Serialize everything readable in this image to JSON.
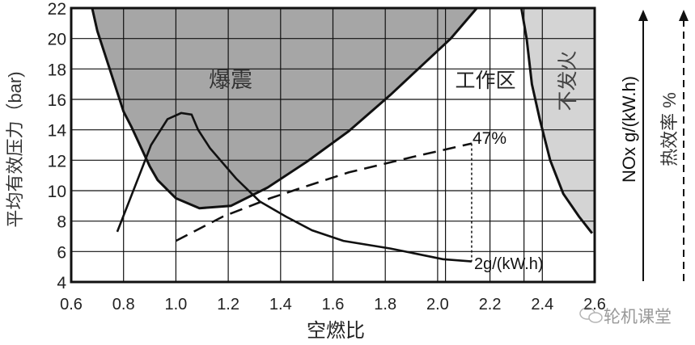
{
  "chart_data": {
    "type": "line",
    "title": "",
    "xlabel": "空燃比",
    "ylabel": "平均有效压力（bar)",
    "xlim": [
      0.6,
      2.6
    ],
    "ylim": [
      4,
      22
    ],
    "xticks": [
      "0.6",
      "0.8",
      "1.0",
      "1.2",
      "1.4",
      "1.6",
      "1.8",
      "2.0",
      "2.2",
      "2.4",
      "2.6"
    ],
    "yticks": [
      "4",
      "6",
      "8",
      "10",
      "12",
      "14",
      "16",
      "18",
      "20",
      "22"
    ],
    "grid": true,
    "regions": [
      {
        "label": "爆震",
        "color": "#a6a6a6",
        "boundary": [
          [
            0.68,
            22
          ],
          [
            0.7,
            20.5
          ],
          [
            0.8,
            15.2
          ],
          [
            0.83,
            14.2
          ],
          [
            0.9,
            11.6
          ],
          [
            0.93,
            10.7
          ],
          [
            1.0,
            9.5
          ],
          [
            1.09,
            8.85
          ],
          [
            1.21,
            9.0
          ],
          [
            1.35,
            10.2
          ],
          [
            1.5,
            11.9
          ],
          [
            1.66,
            13.9
          ],
          [
            1.82,
            16.3
          ],
          [
            2.05,
            20
          ],
          [
            2.15,
            22
          ]
        ]
      },
      {
        "label": "不发火",
        "color": "#d4d4d4",
        "boundary": [
          [
            2.32,
            22
          ],
          [
            2.34,
            20
          ],
          [
            2.36,
            17
          ],
          [
            2.39,
            14.7
          ],
          [
            2.43,
            12
          ],
          [
            2.48,
            9.8
          ],
          [
            2.54,
            8.3
          ],
          [
            2.59,
            7.2
          ]
        ]
      },
      {
        "label": "工作区"
      }
    ],
    "series": [
      {
        "axis": "NOx g/(kW.h)",
        "style": "solid",
        "points": [
          [
            0.776,
            7.3
          ],
          [
            0.86,
            11
          ],
          [
            0.905,
            13
          ],
          [
            0.968,
            14.7
          ],
          [
            1.02,
            15.1
          ],
          [
            1.06,
            15
          ],
          [
            1.085,
            14
          ],
          [
            1.13,
            12.8
          ],
          [
            1.23,
            10.8
          ],
          [
            1.32,
            9.3
          ],
          [
            1.42,
            8.3
          ],
          [
            1.52,
            7.4
          ],
          [
            1.64,
            6.7
          ],
          [
            1.82,
            6.2
          ],
          [
            2.02,
            5.5
          ],
          [
            2.13,
            5.35
          ]
        ]
      },
      {
        "axis": "热效率 %",
        "style": "dashed",
        "points": [
          [
            1.0,
            6.7
          ],
          [
            1.18,
            8.3
          ],
          [
            1.36,
            9.5
          ],
          [
            1.5,
            10.3
          ],
          [
            1.66,
            11.2
          ],
          [
            1.9,
            12.2
          ],
          [
            2.13,
            13.1
          ]
        ]
      }
    ],
    "annotations": [
      {
        "text": "47%",
        "x": 2.13,
        "y": 13.1
      },
      {
        "text": "2g/(kW.h)",
        "x": 2.13,
        "y": 5.35
      }
    ],
    "right_axes": [
      {
        "label": "NOx  g/(kW.h)",
        "style": "solid"
      },
      {
        "label": "热效率  %",
        "style": "dashed"
      }
    ]
  },
  "watermark": {
    "text": "轮机课堂",
    "icon": "wechat-icon"
  }
}
